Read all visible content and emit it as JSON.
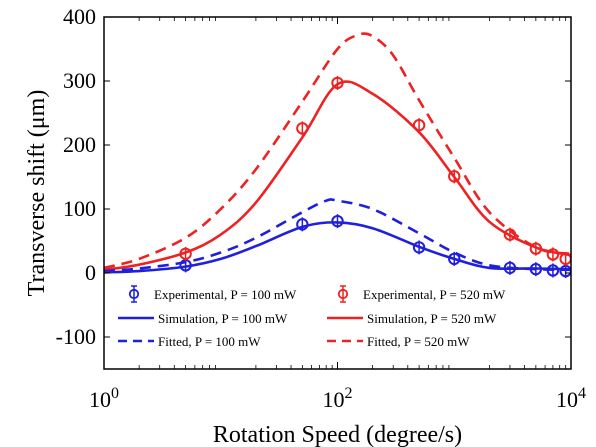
{
  "chart_data": {
    "type": "line",
    "xlabel": "Rotation Speed (degree/s)",
    "ylabel": "Transverse shift (μm)",
    "xscale": "log",
    "xlim": [
      1,
      10000
    ],
    "ylim": [
      -150,
      400
    ],
    "xticks": [
      {
        "value": 1,
        "base": "10",
        "exp": "0"
      },
      {
        "value": 100,
        "base": "10",
        "exp": "2"
      },
      {
        "value": 10000,
        "base": "10",
        "exp": "4"
      }
    ],
    "yticks": [
      -100,
      0,
      100,
      200,
      300,
      400
    ],
    "grid": false,
    "legend_position": "bottom",
    "series": [
      {
        "name": "Experimental, P = 100 mW",
        "kind": "errorbar-markers",
        "color": "#1f1fdc",
        "x": [
          5,
          50,
          100,
          500,
          1000,
          3000,
          5000,
          7000,
          9000
        ],
        "y": [
          12,
          76,
          81,
          40,
          22,
          8,
          6,
          4,
          3
        ]
      },
      {
        "name": "Experimental, P = 520 mW",
        "kind": "errorbar-markers",
        "color": "#ee2222",
        "x": [
          5,
          50,
          100,
          500,
          1000,
          3000,
          5000,
          7000,
          9000
        ],
        "y": [
          30,
          226,
          297,
          231,
          151,
          60,
          38,
          29,
          22
        ]
      },
      {
        "name": "Simulation, P = 100 mW",
        "kind": "solid",
        "color": "#1f1fdc",
        "x": [
          1,
          2,
          5,
          10,
          20,
          50,
          100,
          200,
          500,
          1000,
          2000,
          5000,
          10000
        ],
        "y": [
          1,
          3,
          10,
          22,
          42,
          72,
          79,
          70,
          41,
          22,
          8,
          7,
          6
        ]
      },
      {
        "name": "Simulation, P = 520 mW",
        "kind": "solid",
        "color": "#ee2222",
        "x": [
          1,
          2,
          5,
          10,
          20,
          50,
          100,
          200,
          500,
          1000,
          2000,
          5000,
          10000
        ],
        "y": [
          5,
          13,
          32,
          60,
          110,
          212,
          295,
          280,
          220,
          150,
          80,
          40,
          28
        ]
      },
      {
        "name": "Fitted, P = 100 mW",
        "kind": "dashed",
        "color": "#1f1fdc",
        "x": [
          1,
          2,
          5,
          10,
          20,
          50,
          80,
          100,
          200,
          500,
          1000,
          2000,
          5000,
          10000
        ],
        "y": [
          3,
          7,
          17,
          32,
          55,
          95,
          113,
          113,
          100,
          62,
          32,
          12,
          6,
          5
        ]
      },
      {
        "name": "Fitted, P = 520 mW",
        "kind": "dashed",
        "color": "#ee2222",
        "x": [
          1,
          2,
          5,
          10,
          20,
          50,
          100,
          150,
          200,
          300,
          500,
          1000,
          2000,
          5000,
          10000
        ],
        "y": [
          8,
          22,
          55,
          100,
          162,
          268,
          350,
          372,
          370,
          340,
          270,
          180,
          95,
          40,
          30
        ]
      }
    ]
  }
}
